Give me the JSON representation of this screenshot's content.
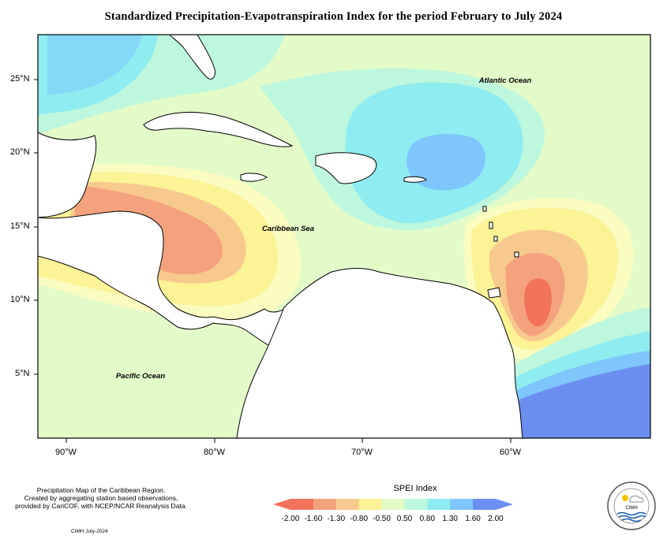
{
  "title": "Standardized Precipitation-Evapotranspiration Index for the period February to July 2024",
  "map": {
    "labels": {
      "atlantic": "Atlantic Ocean",
      "caribbean": "Caribbean Sea",
      "pacific": "Pacific Ocean"
    },
    "latitude_ticks": [
      "25°N",
      "20°N",
      "15°N",
      "10°N",
      "5°N"
    ],
    "longitude_ticks": [
      "90°W",
      "80°W",
      "70°W",
      "60°W"
    ]
  },
  "footer": {
    "note_lines": [
      "Precipitation Map of the Caribbean Region.",
      "Created by aggregating station based observations,",
      "provided by CariCOF, with NCEP/NCAR Reanalysis Data."
    ],
    "credit": "CIMH July-2024"
  },
  "legend": {
    "title": "SPEI Index",
    "ticks": [
      "-2.00",
      "-1.60",
      "-1.30",
      "-0.80",
      "-0.50",
      "0.50",
      "0.80",
      "1.30",
      "1.60",
      "2.00"
    ],
    "colors": [
      "#f2735a",
      "#f4a27e",
      "#f8c98e",
      "#fcf296",
      "#fafcc0",
      "#e3fbc9",
      "#bdf7dd",
      "#8fecf0",
      "#7ec6fb",
      "#6c8ef0"
    ]
  },
  "logo": {
    "text": "CIMH"
  }
}
